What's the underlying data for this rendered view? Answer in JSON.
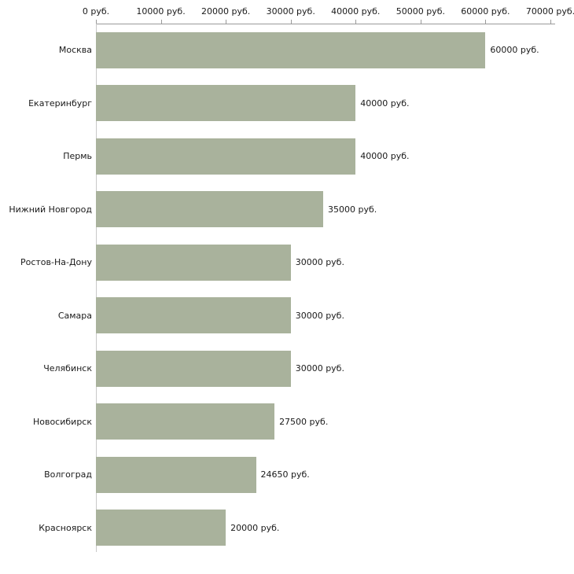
{
  "chart_data": {
    "type": "bar",
    "orientation": "horizontal",
    "title": "",
    "xlabel": "",
    "ylabel": "",
    "categories": [
      "Москва",
      "Екатеринбург",
      "Пермь",
      "Нижний Новгород",
      "Ростов-На-Дону",
      "Самара",
      "Челябинск",
      "Новосибирск",
      "Волгоград",
      "Красноярск"
    ],
    "values": [
      60000,
      40000,
      40000,
      35000,
      30000,
      30000,
      30000,
      27500,
      24650,
      20000
    ],
    "value_labels": [
      "60000 руб.",
      "40000 руб.",
      "40000 руб.",
      "35000 руб.",
      "30000 руб.",
      "30000 руб.",
      "30000 руб.",
      "27500 руб.",
      "24650 руб.",
      "20000 руб."
    ],
    "x_ticks": [
      {
        "value": 0,
        "label": "0 руб."
      },
      {
        "value": 10000,
        "label": "10000 руб."
      },
      {
        "value": 20000,
        "label": "20000 руб."
      },
      {
        "value": 30000,
        "label": "30000 руб."
      },
      {
        "value": 40000,
        "label": "40000 руб."
      },
      {
        "value": 50000,
        "label": "50000 руб."
      },
      {
        "value": 60000,
        "label": "60000 руб."
      },
      {
        "value": 70000,
        "label": "70000 руб."
      }
    ],
    "xlim": [
      0,
      70000
    ],
    "grid": false,
    "legend": false,
    "colors": {
      "bar": "#a9b29c",
      "axis": "#9a9a9a",
      "text": "#1a1a1a",
      "background": "#ffffff"
    }
  }
}
